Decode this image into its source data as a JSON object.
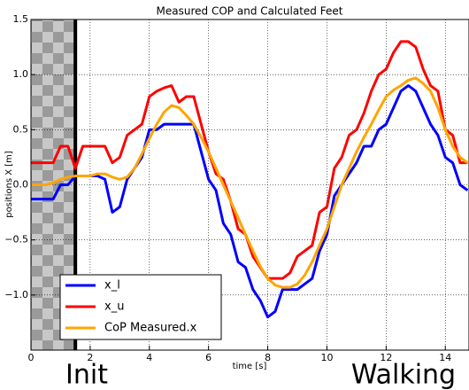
{
  "chart_data": {
    "type": "line",
    "title": "Measured COP and Calculated Feet",
    "xlabel": "time [s]",
    "ylabel": "positions X [m]",
    "annotations": [
      "Init",
      "Walking"
    ],
    "init_phase_end": 1.5,
    "xlim": [
      0,
      14.8
    ],
    "ylim": [
      -1.5,
      1.5
    ],
    "xticks": [
      0,
      2,
      4,
      6,
      8,
      10,
      12,
      14
    ],
    "yticks": [
      {
        "value": -1.0,
        "label": "−1.0"
      },
      {
        "value": -0.5,
        "label": "−0.5"
      },
      {
        "value": 0.0,
        "label": "0.0"
      },
      0.5,
      {
        "value": 1.0,
        "label": "1.0"
      },
      1.5
    ],
    "grid": true,
    "legend": "lower left",
    "x": [
      0,
      0.25,
      0.5,
      0.75,
      1,
      1.25,
      1.5,
      1.75,
      2,
      2.25,
      2.5,
      2.75,
      3,
      3.25,
      3.5,
      3.75,
      4,
      4.25,
      4.5,
      4.75,
      5,
      5.25,
      5.5,
      5.75,
      6,
      6.25,
      6.5,
      6.75,
      7,
      7.25,
      7.5,
      7.75,
      8,
      8.25,
      8.5,
      8.75,
      9,
      9.25,
      9.5,
      9.75,
      10,
      10.25,
      10.5,
      10.75,
      11,
      11.25,
      11.5,
      11.75,
      12,
      12.25,
      12.5,
      12.75,
      13,
      13.25,
      13.5,
      13.75,
      14,
      14.25,
      14.5,
      14.75
    ],
    "series": [
      {
        "name": "x_l",
        "color": "#0000ff",
        "values": [
          -0.13,
          -0.13,
          -0.13,
          -0.13,
          0.0,
          0.0,
          0.08,
          0.08,
          0.08,
          0.08,
          0.05,
          -0.25,
          -0.2,
          0.05,
          0.15,
          0.25,
          0.5,
          0.5,
          0.55,
          0.55,
          0.55,
          0.55,
          0.55,
          0.3,
          0.05,
          -0.05,
          -0.35,
          -0.45,
          -0.7,
          -0.75,
          -0.95,
          -1.05,
          -1.2,
          -1.15,
          -0.95,
          -0.95,
          -0.95,
          -0.9,
          -0.85,
          -0.6,
          -0.45,
          -0.1,
          0.0,
          0.1,
          0.2,
          0.35,
          0.35,
          0.5,
          0.55,
          0.7,
          0.85,
          0.9,
          0.85,
          0.7,
          0.55,
          0.45,
          0.25,
          0.2,
          0.0,
          -0.05
        ]
      },
      {
        "name": "x_u",
        "color": "#ff0000",
        "values": [
          0.2,
          0.2,
          0.2,
          0.2,
          0.35,
          0.35,
          0.15,
          0.35,
          0.35,
          0.35,
          0.35,
          0.2,
          0.25,
          0.45,
          0.5,
          0.55,
          0.8,
          0.85,
          0.88,
          0.9,
          0.75,
          0.8,
          0.8,
          0.55,
          0.3,
          0.1,
          0.05,
          -0.15,
          -0.4,
          -0.45,
          -0.65,
          -0.75,
          -0.85,
          -0.85,
          -0.85,
          -0.8,
          -0.65,
          -0.6,
          -0.55,
          -0.25,
          -0.2,
          0.15,
          0.25,
          0.45,
          0.5,
          0.65,
          0.85,
          1.0,
          1.05,
          1.2,
          1.3,
          1.3,
          1.25,
          1.05,
          0.9,
          0.85,
          0.5,
          0.45,
          0.2,
          0.2
        ]
      },
      {
        "name": "CoP Measured.x",
        "color": "#ffa500",
        "values": [
          0,
          0,
          0,
          0.02,
          0.05,
          0.07,
          0.08,
          0.08,
          0.08,
          0.1,
          0.1,
          0.07,
          0.05,
          0.07,
          0.15,
          0.28,
          0.42,
          0.55,
          0.66,
          0.72,
          0.7,
          0.63,
          0.55,
          0.43,
          0.3,
          0.15,
          0.0,
          -0.15,
          -0.3,
          -0.45,
          -0.6,
          -0.74,
          -0.85,
          -0.91,
          -0.93,
          -0.93,
          -0.9,
          -0.82,
          -0.7,
          -0.55,
          -0.4,
          -0.2,
          0.0,
          0.15,
          0.3,
          0.43,
          0.55,
          0.68,
          0.8,
          0.86,
          0.9,
          0.95,
          0.97,
          0.92,
          0.85,
          0.7,
          0.5,
          0.35,
          0.25,
          0.2
        ]
      }
    ]
  }
}
